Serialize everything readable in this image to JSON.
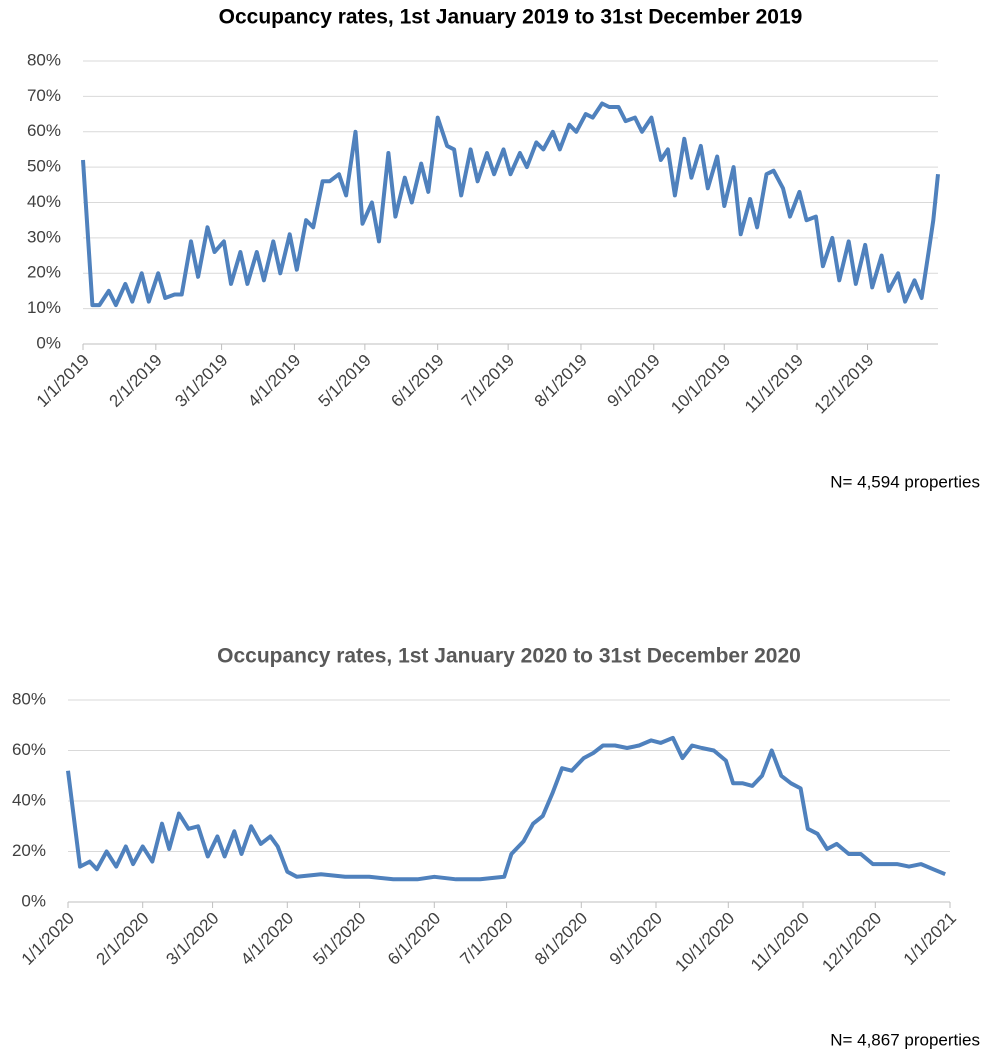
{
  "chart_data": [
    {
      "type": "line",
      "title": "Occupancy rates, 1st January 2019 to 31st December 2019",
      "note": "N= 4,594 properties",
      "x": [
        "1/1/2019",
        "1/5/2019",
        "1/8/2019",
        "1/12/2019",
        "1/15/2019",
        "1/19/2019",
        "1/22/2019",
        "1/26/2019",
        "1/29/2019",
        "2/2/2019",
        "2/5/2019",
        "2/9/2019",
        "2/12/2019",
        "2/16/2019",
        "2/19/2019",
        "2/23/2019",
        "2/26/2019",
        "3/2/2019",
        "3/5/2019",
        "3/9/2019",
        "3/12/2019",
        "3/16/2019",
        "3/19/2019",
        "3/23/2019",
        "3/26/2019",
        "3/30/2019",
        "4/2/2019",
        "4/6/2019",
        "4/9/2019",
        "4/13/2019",
        "4/16/2019",
        "4/20/2019",
        "4/23/2019",
        "4/27/2019",
        "4/30/2019",
        "5/4/2019",
        "5/7/2019",
        "5/11/2019",
        "5/14/2019",
        "5/18/2019",
        "5/21/2019",
        "5/25/2019",
        "5/28/2019",
        "6/1/2019",
        "6/5/2019",
        "6/8/2019",
        "6/11/2019",
        "6/15/2019",
        "6/18/2019",
        "6/22/2019",
        "6/25/2019",
        "6/29/2019",
        "7/2/2019",
        "7/6/2019",
        "7/9/2019",
        "7/13/2019",
        "7/16/2019",
        "7/20/2019",
        "7/23/2019",
        "7/27/2019",
        "7/30/2019",
        "8/3/2019",
        "8/6/2019",
        "8/10/2019",
        "8/13/2019",
        "8/17/2019",
        "8/20/2019",
        "8/24/2019",
        "8/27/2019",
        "8/31/2019",
        "9/4/2019",
        "9/7/2019",
        "9/10/2019",
        "9/14/2019",
        "9/17/2019",
        "9/21/2019",
        "9/24/2019",
        "9/28/2019",
        "10/1/2019",
        "10/5/2019",
        "10/8/2019",
        "10/12/2019",
        "10/15/2019",
        "10/19/2019",
        "10/22/2019",
        "10/26/2019",
        "10/29/2019",
        "11/2/2019",
        "11/5/2019",
        "11/9/2019",
        "11/12/2019",
        "11/16/2019",
        "11/19/2019",
        "11/23/2019",
        "11/26/2019",
        "11/30/2019",
        "12/3/2019",
        "12/7/2019",
        "12/10/2019",
        "12/14/2019",
        "12/17/2019",
        "12/21/2019",
        "12/24/2019",
        "12/27/2019",
        "12/29/2019",
        "12/31/2019"
      ],
      "series": [
        {
          "color": "#4f81bd",
          "values": [
            52,
            11,
            11,
            15,
            11,
            17,
            12,
            20,
            12,
            20,
            13,
            14,
            14,
            29,
            19,
            33,
            26,
            29,
            17,
            26,
            17,
            26,
            18,
            29,
            20,
            31,
            21,
            35,
            33,
            46,
            46,
            48,
            42,
            60,
            34,
            40,
            29,
            54,
            36,
            47,
            40,
            51,
            43,
            64,
            56,
            55,
            42,
            55,
            46,
            54,
            48,
            55,
            48,
            54,
            50,
            57,
            55,
            60,
            55,
            62,
            60,
            65,
            64,
            68,
            67,
            67,
            63,
            64,
            60,
            64,
            52,
            55,
            42,
            58,
            47,
            56,
            44,
            53,
            39,
            50,
            31,
            41,
            33,
            48,
            49,
            44,
            36,
            43,
            35,
            36,
            22,
            30,
            18,
            29,
            17,
            28,
            16,
            25,
            15,
            20,
            12,
            18,
            13,
            26,
            35,
            48
          ]
        }
      ],
      "xlim": [
        "1/1/2019",
        "12/31/2019"
      ],
      "xticks": [
        "1/1/2019",
        "2/1/2019",
        "3/1/2019",
        "4/1/2019",
        "5/1/2019",
        "6/1/2019",
        "7/1/2019",
        "8/1/2019",
        "9/1/2019",
        "10/1/2019",
        "11/1/2019",
        "12/1/2019"
      ],
      "ylim": [
        0,
        80
      ],
      "yticks": [
        {
          "value": 0,
          "label": "0%"
        },
        {
          "value": 10,
          "label": "10%"
        },
        {
          "value": 20,
          "label": "20%"
        },
        {
          "value": 30,
          "label": "30%"
        },
        {
          "value": 40,
          "label": "40%"
        },
        {
          "value": 50,
          "label": "50%"
        },
        {
          "value": 60,
          "label": "60%"
        },
        {
          "value": 70,
          "label": "70%"
        },
        {
          "value": 80,
          "label": "80%"
        }
      ],
      "grid": true
    },
    {
      "type": "line",
      "title": "Occupancy rates, 1st January 2020 to 31st December 2020",
      "note": "N= 4,867 properties",
      "x": [
        "1/1/2020",
        "1/6/2020",
        "1/10/2020",
        "1/13/2020",
        "1/17/2020",
        "1/21/2020",
        "1/25/2020",
        "1/28/2020",
        "2/1/2020",
        "2/5/2020",
        "2/9/2020",
        "2/12/2020",
        "2/16/2020",
        "2/20/2020",
        "2/24/2020",
        "2/28/2020",
        "3/3/2020",
        "3/6/2020",
        "3/10/2020",
        "3/13/2020",
        "3/17/2020",
        "3/21/2020",
        "3/25/2020",
        "3/28/2020",
        "4/1/2020",
        "4/5/2020",
        "4/15/2020",
        "4/25/2020",
        "5/5/2020",
        "5/15/2020",
        "5/25/2020",
        "6/1/2020",
        "6/10/2020",
        "6/20/2020",
        "6/30/2020",
        "7/3/2020",
        "7/8/2020",
        "7/12/2020",
        "7/16/2020",
        "7/20/2020",
        "7/24/2020",
        "7/28/2020",
        "8/2/2020",
        "8/6/2020",
        "8/10/2020",
        "8/15/2020",
        "8/20/2020",
        "8/25/2020",
        "8/30/2020",
        "9/3/2020",
        "9/8/2020",
        "9/12/2020",
        "9/16/2020",
        "9/20/2020",
        "9/25/2020",
        "9/30/2020",
        "10/3/2020",
        "10/7/2020",
        "10/11/2020",
        "10/15/2020",
        "10/19/2020",
        "10/23/2020",
        "10/27/2020",
        "10/31/2020",
        "11/3/2020",
        "11/7/2020",
        "11/11/2020",
        "11/15/2020",
        "11/20/2020",
        "11/25/2020",
        "11/30/2020",
        "12/5/2020",
        "12/10/2020",
        "12/15/2020",
        "12/20/2020",
        "12/25/2020",
        "12/30/2020"
      ],
      "series": [
        {
          "color": "#4f81bd",
          "values": [
            52,
            14,
            16,
            13,
            20,
            14,
            22,
            15,
            22,
            16,
            31,
            21,
            35,
            29,
            30,
            18,
            26,
            18,
            28,
            19,
            30,
            23,
            26,
            22,
            12,
            10,
            11,
            10,
            10,
            9,
            9,
            10,
            9,
            9,
            10,
            19,
            24,
            31,
            34,
            43,
            53,
            52,
            57,
            59,
            62,
            62,
            61,
            62,
            64,
            63,
            65,
            57,
            62,
            61,
            60,
            56,
            47,
            47,
            46,
            50,
            60,
            50,
            47,
            45,
            29,
            27,
            21,
            23,
            19,
            19,
            15,
            15,
            15,
            14,
            15,
            13,
            11
          ]
        }
      ],
      "xlim": [
        "1/1/2020",
        "1/1/2021"
      ],
      "xticks": [
        "1/1/2020",
        "2/1/2020",
        "3/1/2020",
        "4/1/2020",
        "5/1/2020",
        "6/1/2020",
        "7/1/2020",
        "8/1/2020",
        "9/1/2020",
        "10/1/2020",
        "11/1/2020",
        "12/1/2020",
        "1/1/2021"
      ],
      "ylim": [
        0,
        80
      ],
      "yticks": [
        {
          "value": 0,
          "label": "0%"
        },
        {
          "value": 20,
          "label": "20%"
        },
        {
          "value": 40,
          "label": "40%"
        },
        {
          "value": 60,
          "label": "60%"
        },
        {
          "value": 80,
          "label": "80%"
        }
      ],
      "grid": true
    }
  ]
}
